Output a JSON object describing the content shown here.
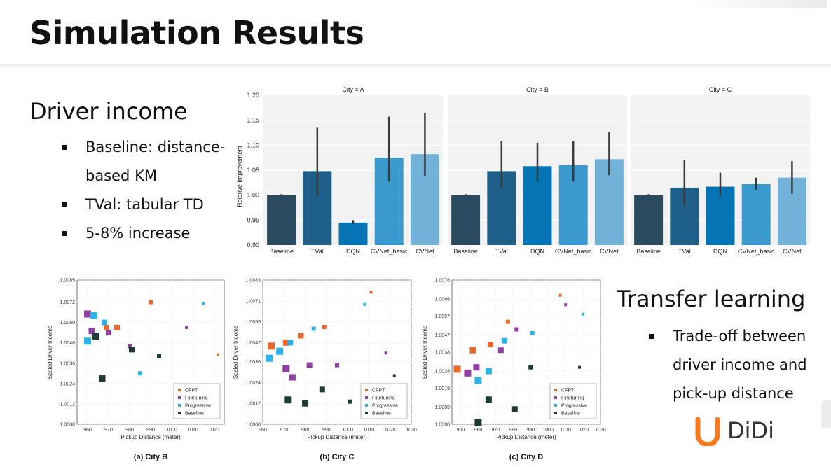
{
  "slide": {
    "title": "Simulation Results",
    "left_heading": "Driver income",
    "left_bullets": [
      "Baseline: distance-based KM",
      "TVal: tabular TD",
      "5-8% increase"
    ],
    "right_heading": "Transfer learning",
    "right_bullets": [
      "Trade-off between driver income and pick-up distance"
    ],
    "logo": {
      "text": "DiDi",
      "color": "#f47b20"
    }
  },
  "chart_data": [
    {
      "type": "bar",
      "title": "City = A",
      "ylabel": "Relative Improvement",
      "ylim": [
        0.9,
        1.2
      ],
      "yticks": [
        "0.90",
        "0.95",
        "1.00",
        "1.05",
        "1.10",
        "1.15",
        "1.20"
      ],
      "categories": [
        "Baseline",
        "TVal",
        "DQN",
        "CVNet_basic",
        "CVNet"
      ],
      "values": [
        1.0,
        1.048,
        0.945,
        1.075,
        1.082
      ],
      "error_low": [
        0.998,
        1.0,
        0.942,
        1.027,
        1.038
      ],
      "error_high": [
        1.002,
        1.135,
        0.95,
        1.157,
        1.165
      ],
      "colors": [
        "#2a4a60",
        "#1e5f8a",
        "#0474b4",
        "#3a9acd",
        "#72b2d8"
      ]
    },
    {
      "type": "bar",
      "title": "City = B",
      "ylim": [
        0.9,
        1.2
      ],
      "categories": [
        "Baseline",
        "TVal",
        "DQN",
        "CVNet_basic",
        "CVNet"
      ],
      "values": [
        1.0,
        1.048,
        1.058,
        1.06,
        1.072
      ],
      "error_low": [
        0.998,
        1.015,
        1.028,
        1.028,
        1.04
      ],
      "error_high": [
        1.002,
        1.108,
        1.105,
        1.108,
        1.127
      ],
      "colors": [
        "#2a4a60",
        "#1e5f8a",
        "#0474b4",
        "#3a9acd",
        "#72b2d8"
      ]
    },
    {
      "type": "bar",
      "title": "City = C",
      "ylim": [
        0.9,
        1.2
      ],
      "categories": [
        "Baseline",
        "TVal",
        "DQN",
        "CVNet_basic",
        "CVNet"
      ],
      "values": [
        1.0,
        1.015,
        1.017,
        1.022,
        1.035
      ],
      "error_low": [
        0.998,
        0.978,
        0.997,
        1.011,
        1.003
      ],
      "error_high": [
        1.002,
        1.07,
        1.045,
        1.035,
        1.068
      ],
      "colors": [
        "#2a4a60",
        "#1e5f8a",
        "#0474b4",
        "#3a9acd",
        "#72b2d8"
      ]
    },
    {
      "type": "scatter",
      "caption": "(a) City B",
      "xlabel": "Pickup Distance (meter)",
      "ylabel": "Scaled Driver Income",
      "xlim": [
        955,
        1025
      ],
      "ylim": [
        1.0,
        1.0085
      ],
      "xticks": [
        960,
        970,
        980,
        990,
        1000,
        1010,
        1020
      ],
      "yticks": [
        "1.0000",
        "1.0012",
        "1.0024",
        "1.0036",
        "1.0048",
        "1.0060",
        "1.0072",
        "1.0085"
      ],
      "legend": [
        "CFPT",
        "Finetuning",
        "Progressive",
        "Baseline"
      ],
      "legend_position": "lower-right",
      "series": [
        {
          "name": "CFPT",
          "color": "#e8672a",
          "points": [
            [
              969,
              1.0057
            ],
            [
              974,
              1.0057
            ],
            [
              990,
              1.0072
            ],
            [
              1022,
              1.0041
            ]
          ],
          "sizes": [
            8,
            8,
            6,
            4
          ]
        },
        {
          "name": "Finetuning",
          "color": "#8e3fa0",
          "points": [
            [
              960,
              1.0065
            ],
            [
              962,
              1.0055
            ],
            [
              970,
              1.0054
            ],
            [
              980,
              1.0046
            ],
            [
              1007,
              1.0057
            ]
          ],
          "sizes": [
            10,
            9,
            8,
            6,
            4
          ]
        },
        {
          "name": "Progressive",
          "color": "#2bb3e8",
          "points": [
            [
              960,
              1.0049
            ],
            [
              963,
              1.0064
            ],
            [
              968,
              1.006
            ],
            [
              985,
              1.003
            ],
            [
              1015,
              1.0071
            ]
          ],
          "sizes": [
            10,
            10,
            8,
            6,
            4
          ]
        },
        {
          "name": "Baseline",
          "color": "#1d3b34",
          "points": [
            [
              964,
              1.0052
            ],
            [
              967,
              1.0027
            ],
            [
              981,
              1.0044
            ],
            [
              994,
              1.004
            ],
            [
              1011,
              1.0008
            ]
          ],
          "sizes": [
            10,
            9,
            8,
            6,
            5
          ]
        }
      ]
    },
    {
      "type": "scatter",
      "caption": "(b) City C",
      "xlabel": "Pickup Distance (meter)",
      "ylabel": "Scaled Driver Income",
      "xlim": [
        960,
        1030
      ],
      "ylim": [
        1.0,
        1.0083
      ],
      "xticks": [
        960,
        970,
        980,
        990,
        1000,
        1010,
        1020,
        1030
      ],
      "yticks": [
        "1.0000",
        "1.0012",
        "1.0024",
        "1.0036",
        "1.0047",
        "1.0059",
        "1.0071",
        "1.0083"
      ],
      "legend": [
        "CFPT",
        "Finetuning",
        "Progressive",
        "Baseline"
      ],
      "legend_position": "lower-right",
      "series": [
        {
          "name": "CFPT",
          "color": "#e8672a",
          "points": [
            [
              964,
              1.0045
            ],
            [
              971,
              1.0047
            ],
            [
              978,
              1.0051
            ],
            [
              989,
              1.0056
            ],
            [
              1011,
              1.0076
            ]
          ],
          "sizes": [
            10,
            9,
            8,
            6,
            4
          ]
        },
        {
          "name": "Finetuning",
          "color": "#8e3fa0",
          "points": [
            [
              971,
              1.0032
            ],
            [
              974,
              1.0027
            ],
            [
              982,
              1.0034
            ],
            [
              995,
              1.0034
            ],
            [
              1018,
              1.0041
            ]
          ],
          "sizes": [
            10,
            9,
            8,
            6,
            4
          ]
        },
        {
          "name": "Progressive",
          "color": "#2bb3e8",
          "points": [
            [
              963,
              1.0038
            ],
            [
              968,
              1.0042
            ],
            [
              973,
              1.0047
            ],
            [
              984,
              1.0055
            ],
            [
              1008,
              1.0069
            ]
          ],
          "sizes": [
            10,
            10,
            8,
            6,
            4
          ]
        },
        {
          "name": "Baseline",
          "color": "#1d3b34",
          "points": [
            [
              972,
              1.0014
            ],
            [
              980,
              1.0012
            ],
            [
              988,
              1.002
            ],
            [
              1001,
              1.0013
            ],
            [
              1022,
              1.0028
            ]
          ],
          "sizes": [
            10,
            9,
            8,
            6,
            4
          ]
        }
      ]
    },
    {
      "type": "scatter",
      "caption": "(c) City D",
      "xlabel": "Pickup Distance (meter)",
      "ylabel": "Scaled Driver Income",
      "xlim": [
        945,
        1030
      ],
      "ylim": [
        1.0,
        1.0076
      ],
      "xticks": [
        950,
        960,
        970,
        980,
        990,
        1000,
        1010,
        1020,
        1030
      ],
      "yticks": [
        "1.0000",
        "1.0009",
        "1.0019",
        "1.0028",
        "1.0038",
        "1.0047",
        "1.0057",
        "1.0066",
        "1.0076"
      ],
      "legend": [
        "CFPT",
        "Finetuning",
        "Progressive",
        "Baseline"
      ],
      "legend_position": "lower-right",
      "series": [
        {
          "name": "CFPT",
          "color": "#e8672a",
          "points": [
            [
              948,
              1.0029
            ],
            [
              957,
              1.0039
            ],
            [
              967,
              1.0042
            ],
            [
              977,
              1.0054
            ],
            [
              1007,
              1.0068
            ]
          ],
          "sizes": [
            10,
            9,
            8,
            6,
            4
          ]
        },
        {
          "name": "Finetuning",
          "color": "#8e3fa0",
          "points": [
            [
              954,
              1.0027
            ],
            [
              959,
              1.003
            ],
            [
              973,
              1.0039
            ],
            [
              982,
              1.005
            ],
            [
              1010,
              1.0063
            ]
          ],
          "sizes": [
            10,
            9,
            8,
            6,
            4
          ]
        },
        {
          "name": "Progressive",
          "color": "#2bb3e8",
          "points": [
            [
              960,
              1.0023
            ],
            [
              966,
              1.0028
            ],
            [
              975,
              1.0044
            ],
            [
              991,
              1.0048
            ],
            [
              1020,
              1.0058
            ]
          ],
          "sizes": [
            10,
            9,
            8,
            6,
            4
          ]
        },
        {
          "name": "Baseline",
          "color": "#1d3b34",
          "points": [
            [
              960,
              1.0001
            ],
            [
              966,
              1.0013
            ],
            [
              981,
              1.0008
            ],
            [
              990,
              1.003
            ],
            [
              1018,
              1.003
            ]
          ],
          "sizes": [
            10,
            9,
            8,
            6,
            4
          ]
        }
      ]
    }
  ]
}
